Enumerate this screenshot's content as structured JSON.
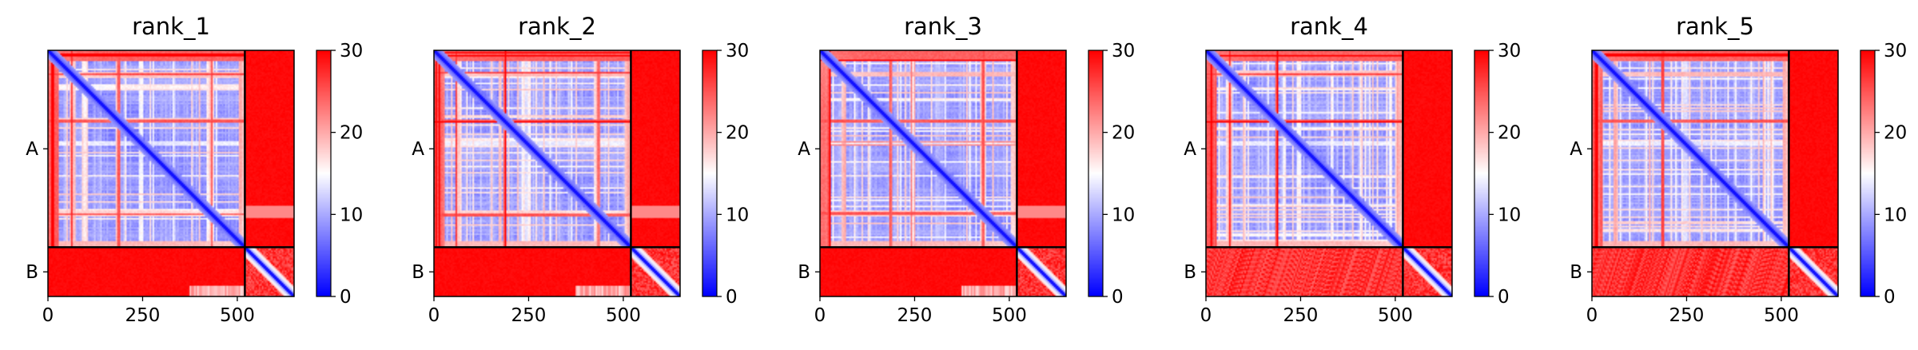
{
  "chart_data": [
    {
      "type": "heatmap",
      "title": "rank_1",
      "variant": 1
    },
    {
      "type": "heatmap",
      "title": "rank_2",
      "variant": 2
    },
    {
      "type": "heatmap",
      "title": "rank_3",
      "variant": 3
    },
    {
      "type": "heatmap",
      "title": "rank_4",
      "variant": 4
    },
    {
      "type": "heatmap",
      "title": "rank_5",
      "variant": 5
    }
  ],
  "shared": {
    "matrix_size": 650,
    "chain_boundary": 520,
    "chains": [
      {
        "label": "A",
        "center": 260
      },
      {
        "label": "B",
        "center": 585
      }
    ],
    "x_ticks": [
      0,
      250,
      500
    ],
    "x_tick_labels": [
      "0",
      "250",
      "500"
    ],
    "colorbar": {
      "range": [
        0,
        30
      ],
      "ticks": [
        0,
        10,
        20,
        30
      ],
      "tick_labels": [
        "0",
        "10",
        "20",
        "30"
      ],
      "colormap": "bwr",
      "colors": {
        "low": "#0000ff",
        "mid": "#ffffff",
        "high": "#ff0000"
      }
    },
    "boundary_color": "#000000"
  }
}
